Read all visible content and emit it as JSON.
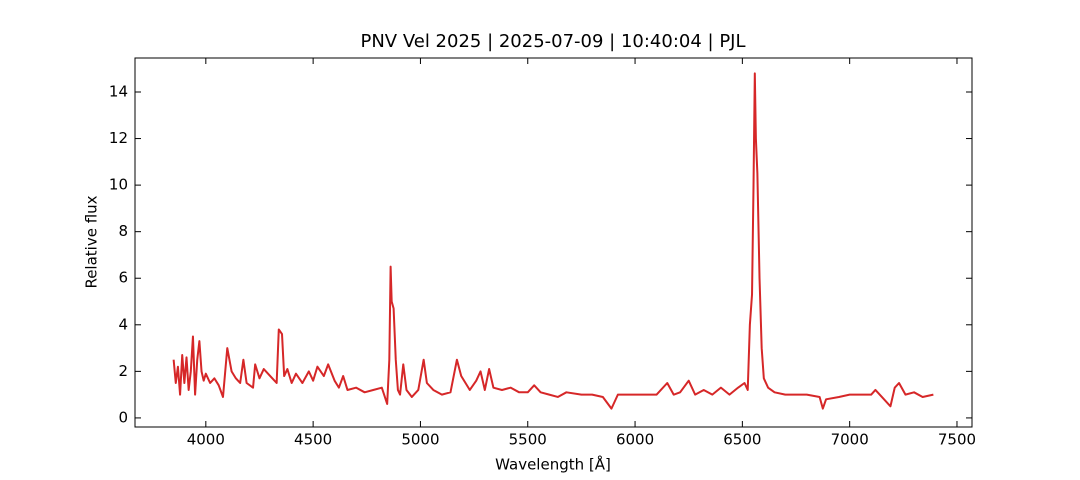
{
  "chart_data": {
    "type": "line",
    "title": "PNV Vel 2025 | 2025-07-09 | 10:40:04 | PJL",
    "xlabel": "Wavelength [Å]",
    "ylabel": "Relative flux",
    "x": [
      3850,
      3860,
      3870,
      3880,
      3890,
      3900,
      3910,
      3920,
      3930,
      3940,
      3950,
      3960,
      3970,
      3980,
      3990,
      4000,
      4020,
      4040,
      4060,
      4080,
      4100,
      4120,
      4140,
      4160,
      4175,
      4190,
      4220,
      4230,
      4250,
      4270,
      4300,
      4330,
      4340,
      4355,
      4365,
      4380,
      4400,
      4420,
      4450,
      4480,
      4500,
      4520,
      4550,
      4570,
      4600,
      4620,
      4640,
      4660,
      4700,
      4740,
      4780,
      4820,
      4845,
      4855,
      4861,
      4866,
      4875,
      4885,
      4895,
      4905,
      4920,
      4935,
      4960,
      4990,
      5015,
      5030,
      5060,
      5100,
      5140,
      5170,
      5190,
      5210,
      5230,
      5260,
      5280,
      5300,
      5320,
      5340,
      5380,
      5420,
      5460,
      5500,
      5530,
      5560,
      5600,
      5640,
      5680,
      5750,
      5800,
      5850,
      5890,
      5920,
      5980,
      6050,
      6100,
      6150,
      6180,
      6210,
      6250,
      6280,
      6320,
      6360,
      6400,
      6440,
      6480,
      6510,
      6525,
      6535,
      6545,
      6552,
      6558,
      6563,
      6570,
      6580,
      6590,
      6600,
      6620,
      6650,
      6700,
      6750,
      6800,
      6860,
      6875,
      6890,
      6950,
      7000,
      7050,
      7100,
      7120,
      7150,
      7190,
      7210,
      7230,
      7260,
      7300,
      7340,
      7390
    ],
    "series": [
      {
        "name": "PNV Vel 2025",
        "color": "#d62728",
        "values": [
          2.5,
          1.5,
          2.2,
          1.0,
          2.7,
          1.5,
          2.6,
          1.2,
          2.0,
          3.5,
          1.0,
          2.5,
          3.3,
          2.0,
          1.6,
          1.9,
          1.5,
          1.7,
          1.4,
          0.9,
          3.0,
          2.0,
          1.7,
          1.5,
          2.5,
          1.5,
          1.3,
          2.3,
          1.7,
          2.1,
          1.8,
          1.5,
          3.8,
          3.6,
          1.8,
          2.1,
          1.5,
          1.9,
          1.5,
          2.0,
          1.6,
          2.2,
          1.8,
          2.3,
          1.6,
          1.3,
          1.8,
          1.2,
          1.3,
          1.1,
          1.2,
          1.3,
          0.6,
          2.5,
          6.5,
          5.0,
          4.7,
          2.5,
          1.2,
          1.0,
          2.3,
          1.2,
          0.9,
          1.2,
          2.5,
          1.5,
          1.2,
          1.0,
          1.1,
          2.5,
          1.8,
          1.5,
          1.2,
          1.6,
          2.0,
          1.2,
          2.1,
          1.3,
          1.2,
          1.3,
          1.1,
          1.1,
          1.4,
          1.1,
          1.0,
          0.9,
          1.1,
          1.0,
          1.0,
          0.9,
          0.4,
          1.0,
          1.0,
          1.0,
          1.0,
          1.5,
          1.0,
          1.1,
          1.6,
          1.0,
          1.2,
          1.0,
          1.3,
          1.0,
          1.3,
          1.5,
          1.2,
          4.0,
          5.3,
          10.0,
          14.8,
          12.0,
          10.5,
          6.0,
          3.0,
          1.7,
          1.3,
          1.1,
          1.0,
          1.0,
          1.0,
          0.9,
          0.4,
          0.8,
          0.9,
          1.0,
          1.0,
          1.0,
          1.2,
          0.9,
          0.5,
          1.3,
          1.5,
          1.0,
          1.1,
          0.9,
          1.0
        ]
      }
    ],
    "xlim": [
      3670,
      7570
    ],
    "xticks": [
      4000,
      4500,
      5000,
      5500,
      6000,
      6500,
      7000,
      7500
    ],
    "ylim": [
      -0.39,
      15.46
    ],
    "yticks": [
      0,
      2,
      4,
      6,
      8,
      10,
      12,
      14
    ]
  }
}
